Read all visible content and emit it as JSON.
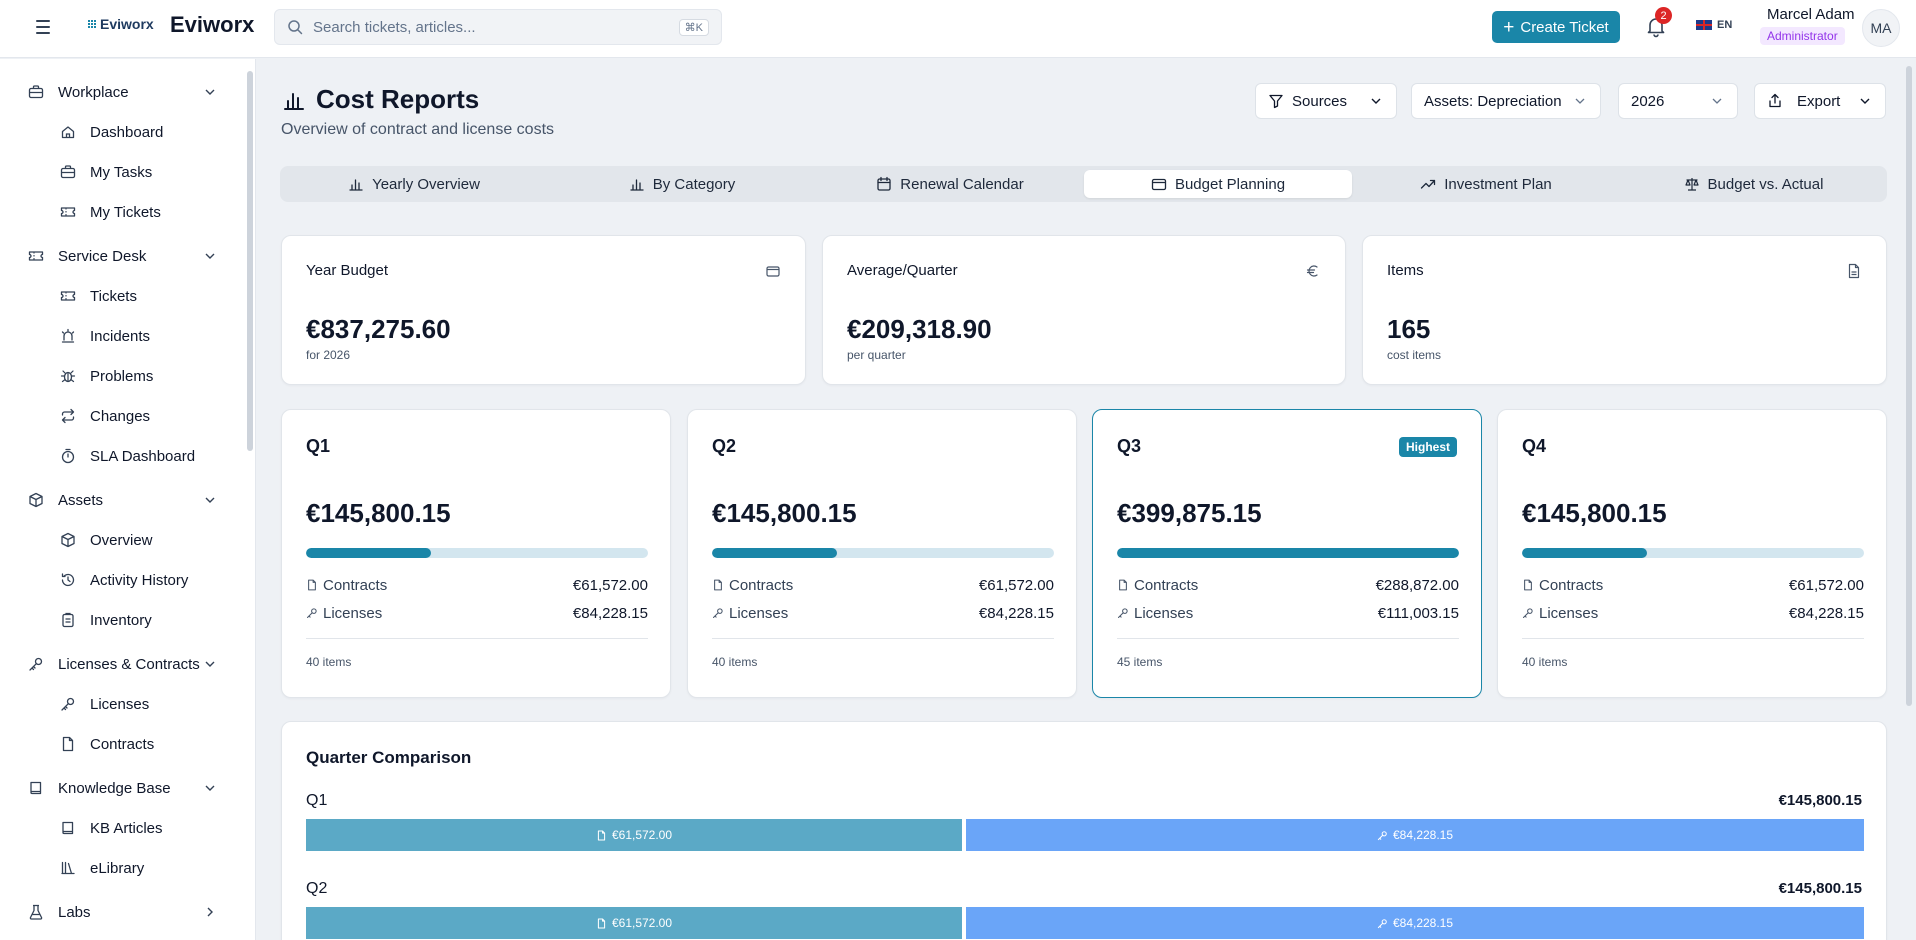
{
  "app": {
    "logo_text": "Eviworx",
    "brand": "Eviworx",
    "search_placeholder": "Search tickets, articles...",
    "search_shortcut": "⌘K",
    "create_ticket_label": "Create Ticket",
    "notification_count": "2",
    "language": "EN",
    "user_name": "Marcel Adam",
    "user_role": "Administrator",
    "user_initials": "MA"
  },
  "sidebar": {
    "groups": [
      {
        "label": "Workplace",
        "items": [
          "Dashboard",
          "My Tasks",
          "My Tickets"
        ]
      },
      {
        "label": "Service Desk",
        "items": [
          "Tickets",
          "Incidents",
          "Problems",
          "Changes",
          "SLA Dashboard"
        ]
      },
      {
        "label": "Assets",
        "items": [
          "Overview",
          "Activity History",
          "Inventory"
        ]
      },
      {
        "label": "Licenses & Contracts",
        "items": [
          "Licenses",
          "Contracts"
        ]
      },
      {
        "label": "Knowledge Base",
        "items": [
          "KB Articles",
          "eLibrary"
        ]
      },
      {
        "label": "Labs",
        "items": []
      }
    ]
  },
  "page": {
    "title": "Cost Reports",
    "subtitle": "Overview of contract and license costs",
    "controls": {
      "sources": "Sources",
      "assets": "Assets: Depreciation",
      "year": "2026",
      "export": "Export"
    },
    "tabs": [
      "Yearly Overview",
      "By Category",
      "Renewal Calendar",
      "Budget Planning",
      "Investment Plan",
      "Budget vs. Actual"
    ],
    "active_tab": "Budget Planning"
  },
  "stats": [
    {
      "label": "Year Budget",
      "value": "€837,275.60",
      "sub": "for 2026",
      "icon": "wallet-icon"
    },
    {
      "label": "Average/Quarter",
      "value": "€209,318.90",
      "sub": "per quarter",
      "icon": "euro-icon"
    },
    {
      "label": "Items",
      "value": "165",
      "sub": "cost items",
      "icon": "document-icon"
    }
  ],
  "quarters": [
    {
      "title": "Q1",
      "total": "€145,800.15",
      "share": 0.365,
      "contracts_label": "Contracts",
      "contracts": "€61,572.00",
      "licenses_label": "Licenses",
      "licenses": "€84,228.15",
      "items": "40 items",
      "badge": ""
    },
    {
      "title": "Q2",
      "total": "€145,800.15",
      "share": 0.365,
      "contracts_label": "Contracts",
      "contracts": "€61,572.00",
      "licenses_label": "Licenses",
      "licenses": "€84,228.15",
      "items": "40 items",
      "badge": ""
    },
    {
      "title": "Q3",
      "total": "€399,875.15",
      "share": 1.0,
      "contracts_label": "Contracts",
      "contracts": "€288,872.00",
      "licenses_label": "Licenses",
      "licenses": "€111,003.15",
      "items": "45 items",
      "badge": "Highest"
    },
    {
      "title": "Q4",
      "total": "€145,800.15",
      "share": 0.365,
      "contracts_label": "Contracts",
      "contracts": "€61,572.00",
      "licenses_label": "Licenses",
      "licenses": "€84,228.15",
      "items": "40 items",
      "badge": ""
    }
  ],
  "comparison": {
    "title": "Quarter Comparison",
    "rows": [
      {
        "quarter": "Q1",
        "total": "€145,800.15",
        "contracts": "€61,572.00",
        "licenses": "€84,228.15",
        "contracts_share": 0.4223
      },
      {
        "quarter": "Q2",
        "total": "€145,800.15",
        "contracts": "€61,572.00",
        "licenses": "€84,228.15",
        "contracts_share": 0.4223
      }
    ]
  },
  "colors": {
    "accent": "#1a86a8",
    "contracts": "#5ba9c6",
    "licenses": "#6aa5f8",
    "badge_red": "#dc2626",
    "role_purple": "#9333ea"
  }
}
